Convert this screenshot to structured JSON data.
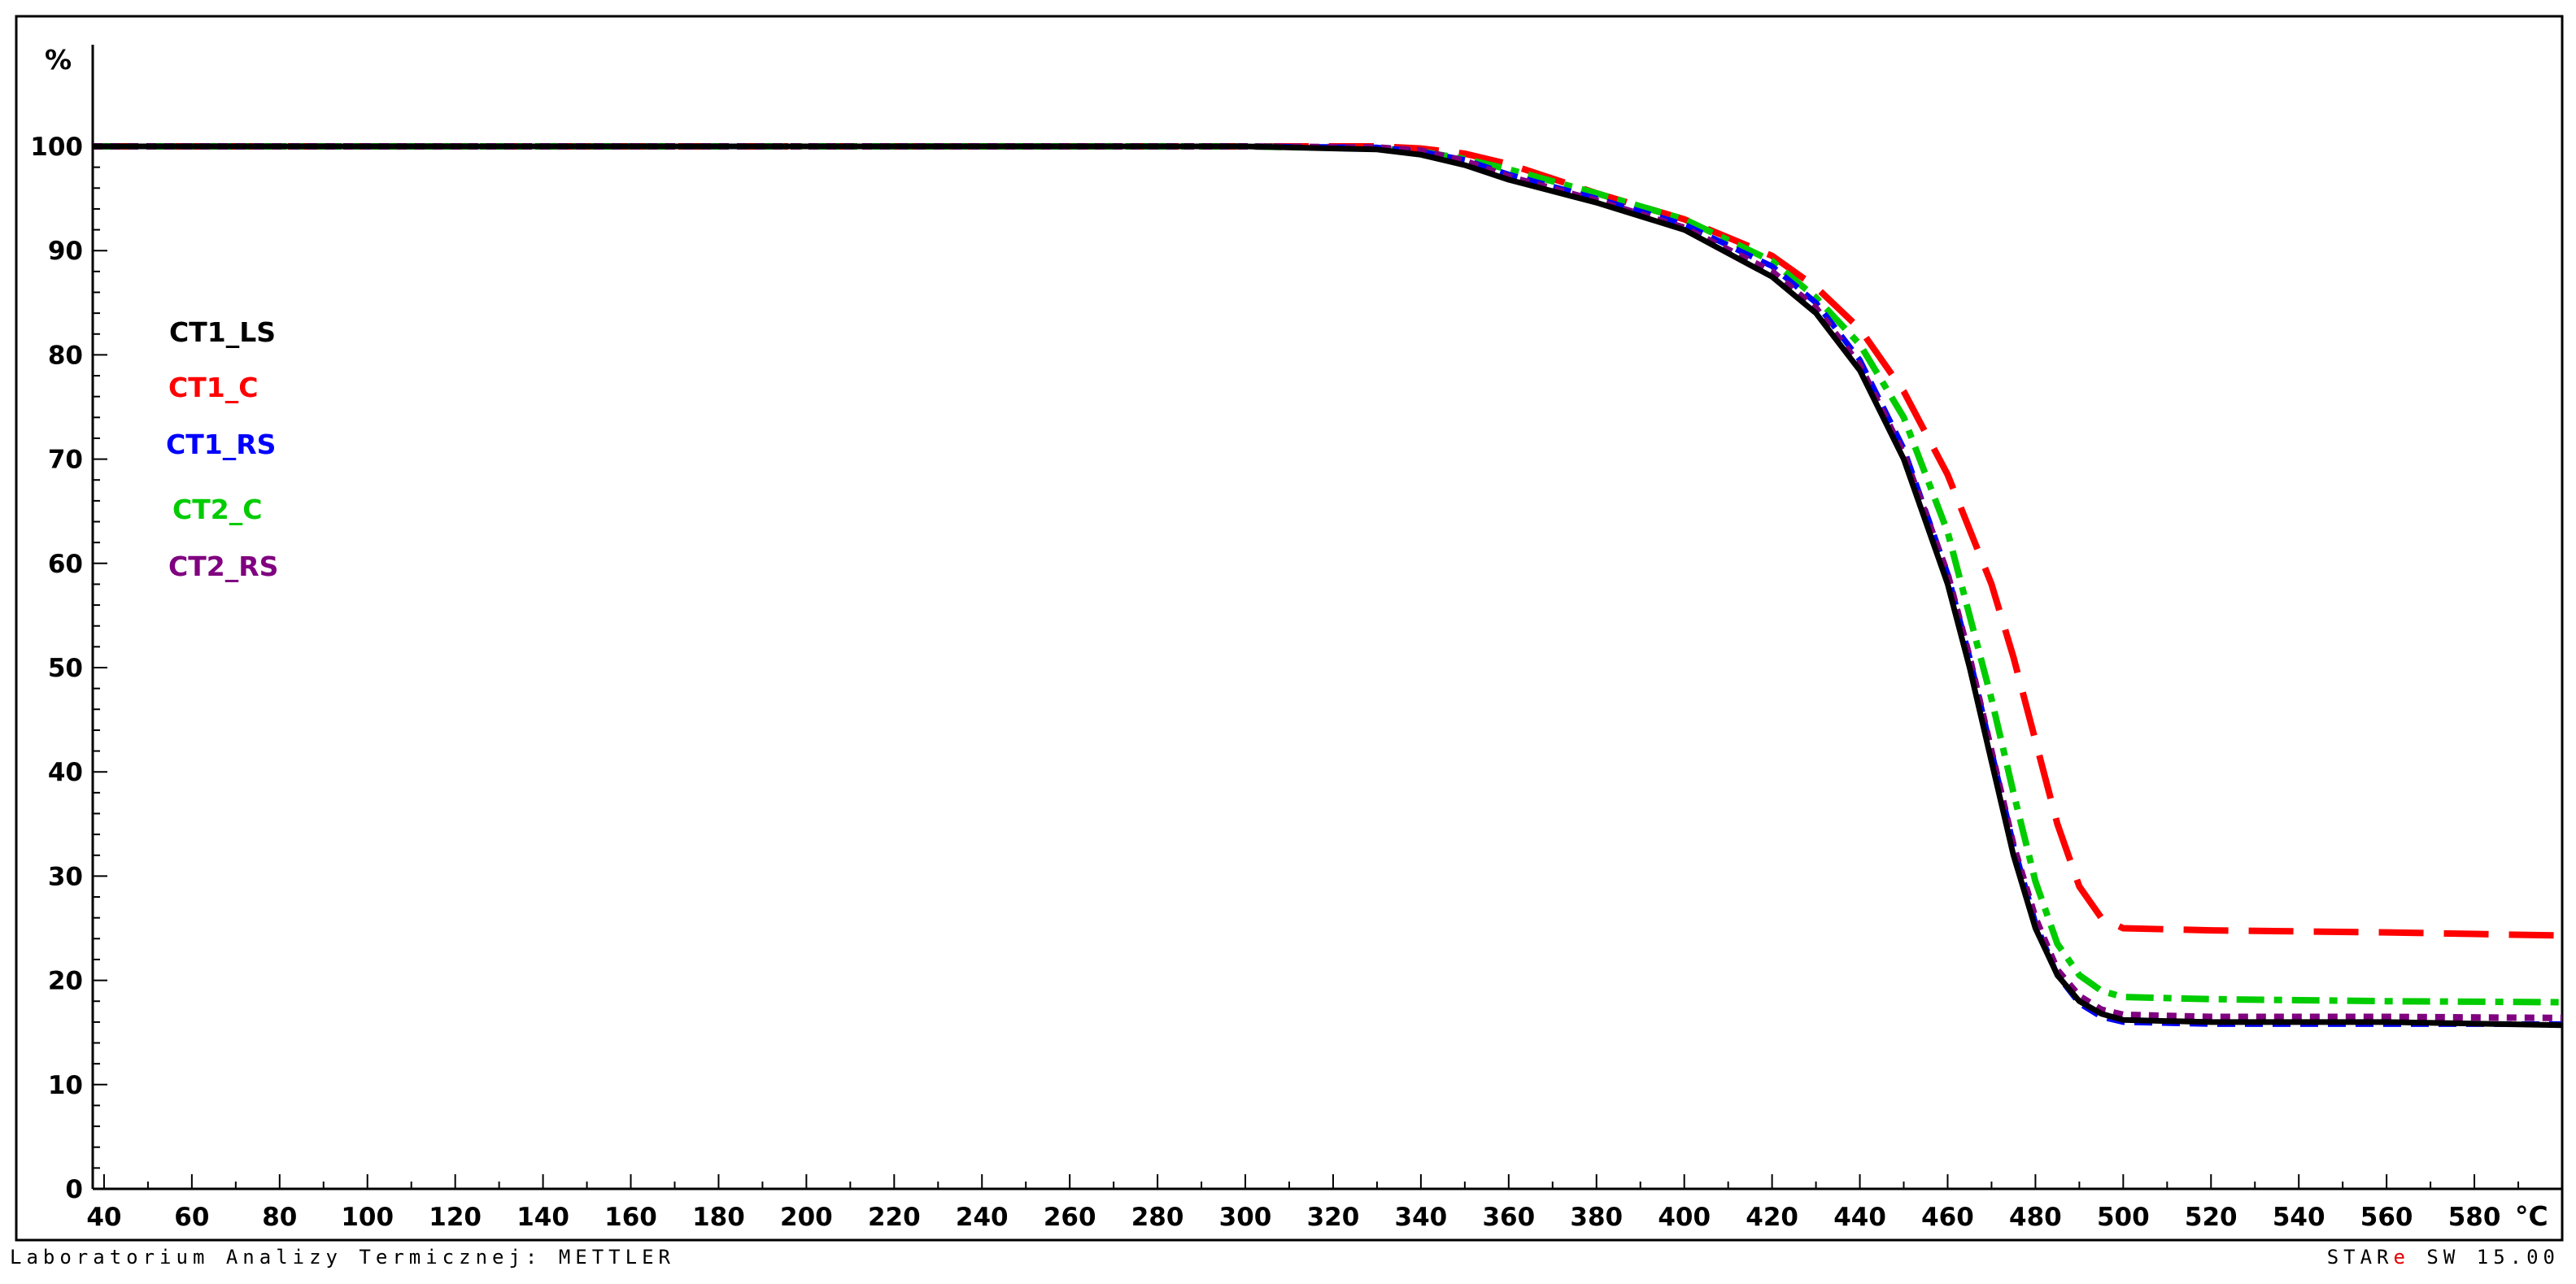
{
  "footer": {
    "lab": "Laboratorium Analizy Termicznej: METTLER",
    "software_star": "STAR",
    "software_mark": "e",
    "software_version": "SW 15.00"
  },
  "chart_data": {
    "type": "line",
    "title": "",
    "xlabel": "°C",
    "ylabel": "%",
    "xlim": [
      28,
      600
    ],
    "ylim": [
      0,
      108
    ],
    "x_ticks": [
      40,
      60,
      80,
      100,
      120,
      140,
      160,
      180,
      200,
      220,
      240,
      260,
      280,
      300,
      320,
      340,
      360,
      380,
      400,
      420,
      440,
      460,
      480,
      500,
      520,
      540,
      560,
      580
    ],
    "y_ticks": [
      0,
      10,
      20,
      30,
      40,
      50,
      60,
      70,
      80,
      90,
      100
    ],
    "grid": false,
    "legend_position": "left",
    "series": [
      {
        "name": "CT1_LS",
        "color": "#000000",
        "style": "solid",
        "x": [
          28,
          100,
          200,
          300,
          330,
          340,
          350,
          360,
          380,
          400,
          420,
          430,
          440,
          450,
          460,
          465,
          470,
          475,
          480,
          485,
          490,
          495,
          500,
          520,
          560,
          600
        ],
        "y": [
          100,
          100,
          100,
          100,
          99.7,
          99.2,
          98.2,
          96.8,
          94.6,
          92,
          87.5,
          84,
          78.5,
          70,
          58,
          50,
          41,
          32,
          25,
          20.5,
          18,
          16.8,
          16.2,
          16,
          16,
          15.7
        ]
      },
      {
        "name": "CT1_C",
        "color": "#ff0000",
        "style": "longdash",
        "x": [
          28,
          100,
          200,
          300,
          330,
          340,
          350,
          360,
          380,
          400,
          420,
          430,
          440,
          450,
          460,
          470,
          475,
          480,
          485,
          490,
          495,
          500,
          520,
          560,
          600
        ],
        "y": [
          100,
          100,
          100,
          100,
          100,
          99.8,
          99.3,
          98.3,
          95.5,
          93,
          89.5,
          86.5,
          82.5,
          76.5,
          68.5,
          58,
          51,
          43,
          35,
          29,
          26,
          25,
          24.8,
          24.6,
          24.3
        ]
      },
      {
        "name": "CT1_RS",
        "color": "#0000ff",
        "style": "dash",
        "x": [
          28,
          100,
          200,
          300,
          330,
          340,
          350,
          360,
          380,
          400,
          420,
          430,
          440,
          450,
          460,
          465,
          470,
          475,
          480,
          485,
          490,
          495,
          500,
          520,
          560,
          600
        ],
        "y": [
          100,
          100,
          100,
          100,
          99.9,
          99.5,
          98.7,
          97.3,
          95,
          92.5,
          88.5,
          85,
          79.5,
          71,
          59,
          51,
          42,
          33,
          25.5,
          20.5,
          17.8,
          16.5,
          16,
          15.8,
          15.8,
          15.8
        ]
      },
      {
        "name": "CT2_C",
        "color": "#00cc00",
        "style": "dashdot",
        "x": [
          28,
          100,
          200,
          300,
          330,
          340,
          350,
          360,
          380,
          400,
          420,
          430,
          440,
          450,
          460,
          470,
          475,
          480,
          485,
          490,
          495,
          500,
          520,
          560,
          600
        ],
        "y": [
          100,
          100,
          100,
          100,
          99.8,
          99.5,
          98.8,
          97.8,
          95.5,
          93,
          89,
          85.5,
          81,
          74,
          63,
          47,
          38,
          29.5,
          23.5,
          20.5,
          19,
          18.4,
          18.2,
          18,
          17.9
        ]
      },
      {
        "name": "CT2_RS",
        "color": "#800080",
        "style": "dot",
        "x": [
          28,
          100,
          200,
          300,
          330,
          340,
          350,
          360,
          380,
          400,
          420,
          430,
          440,
          450,
          460,
          465,
          470,
          475,
          480,
          485,
          490,
          495,
          500,
          520,
          560,
          600
        ],
        "y": [
          100,
          100,
          100,
          100,
          99.9,
          99.6,
          98.6,
          97.1,
          94.8,
          92.2,
          88,
          84.5,
          79,
          70.5,
          59,
          51,
          42,
          33,
          26,
          21,
          18.5,
          17.2,
          16.7,
          16.5,
          16.5,
          16.4
        ]
      }
    ]
  }
}
